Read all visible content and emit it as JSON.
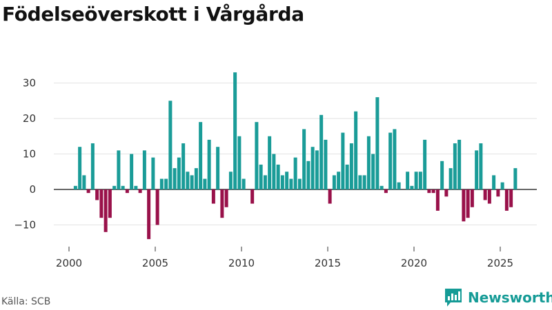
{
  "title": "Födelseöverskott i Vårgårda",
  "source": "Källa: SCB",
  "brand": {
    "name": "Newsworthy",
    "color": "#159b96"
  },
  "chart_data": {
    "type": "bar",
    "ylim": [
      -16,
      38
    ],
    "xlim": [
      2000,
      2026
    ],
    "yticks": [
      -10,
      0,
      10,
      20,
      30
    ],
    "ytick_labels": [
      "−10",
      "0",
      "10",
      "20",
      "30"
    ],
    "xticks": [
      2000,
      2005,
      2010,
      2015,
      2020,
      2025
    ],
    "xtick_labels": [
      "2000",
      "2005",
      "2010",
      "2015",
      "2020",
      "2025"
    ],
    "grid": true,
    "colors": {
      "positive": "#1a9c98",
      "negative": "#99114a"
    },
    "start_quarter": "2000 Q1",
    "values": [
      0,
      1,
      12,
      4,
      -1,
      13,
      -3,
      -8,
      -12,
      -8,
      1,
      11,
      1,
      -1,
      10,
      1,
      -1,
      11,
      -14,
      9,
      -10,
      3,
      3,
      25,
      6,
      9,
      13,
      5,
      4,
      6,
      19,
      3,
      14,
      -4,
      12,
      -8,
      -5,
      5,
      33,
      15,
      3,
      0,
      -4,
      19,
      7,
      4,
      15,
      10,
      7,
      4,
      5,
      3,
      9,
      3,
      17,
      8,
      12,
      11,
      21,
      14,
      -4,
      4,
      5,
      16,
      7,
      13,
      22,
      4,
      4,
      15,
      10,
      26,
      1,
      -1,
      16,
      17,
      2,
      0,
      5,
      1,
      5,
      5,
      14,
      -1,
      -1,
      -6,
      8,
      -2,
      6,
      13,
      14,
      -9,
      -8,
      -5,
      11,
      13,
      -3,
      -4,
      4,
      -2,
      2,
      -6,
      -5,
      6
    ]
  }
}
